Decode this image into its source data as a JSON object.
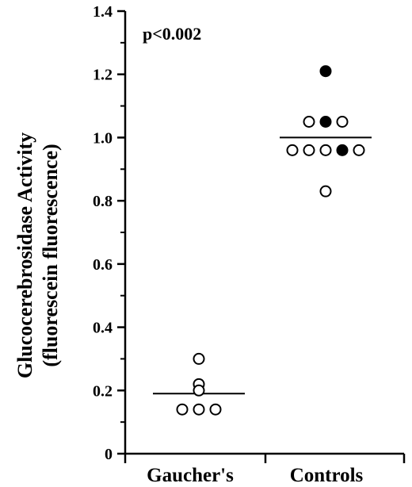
{
  "chart_data": {
    "type": "scatter",
    "categories": [
      "Gaucher's",
      "Controls"
    ],
    "ylabel_line1": "Glucocerebrosidase Activity",
    "ylabel_line2": "(fluorescein fluorescence)",
    "ylim": [
      0,
      1.4
    ],
    "yticks": [
      0,
      0.2,
      0.4,
      0.6,
      0.8,
      1.0,
      1.2,
      1.4
    ],
    "ytick_labels": [
      "0",
      "0.2",
      "0.4",
      "0.6",
      "0.8",
      "1.0",
      "1.2",
      "1.4"
    ],
    "annotation": "p<0.002",
    "grid": false,
    "groups": [
      {
        "category": "Gaucher's",
        "mean": 0.19,
        "points": [
          {
            "y": 0.3,
            "offset": 0,
            "filled": false
          },
          {
            "y": 0.22,
            "offset": 0,
            "filled": false
          },
          {
            "y": 0.2,
            "offset": 0,
            "filled": false
          },
          {
            "y": 0.14,
            "offset": -1,
            "filled": false
          },
          {
            "y": 0.14,
            "offset": 0,
            "filled": false
          },
          {
            "y": 0.14,
            "offset": 1,
            "filled": false
          }
        ]
      },
      {
        "category": "Controls",
        "mean": 1.0,
        "points": [
          {
            "y": 1.21,
            "offset": 0,
            "filled": true
          },
          {
            "y": 1.05,
            "offset": -1,
            "filled": false
          },
          {
            "y": 1.05,
            "offset": 0,
            "filled": true
          },
          {
            "y": 1.05,
            "offset": 1,
            "filled": false
          },
          {
            "y": 0.96,
            "offset": -2,
            "filled": false
          },
          {
            "y": 0.96,
            "offset": -1,
            "filled": false
          },
          {
            "y": 0.96,
            "offset": 0,
            "filled": false
          },
          {
            "y": 0.96,
            "offset": 1,
            "filled": true
          },
          {
            "y": 0.96,
            "offset": 2,
            "filled": false
          },
          {
            "y": 0.83,
            "offset": 0,
            "filled": false
          }
        ]
      }
    ]
  }
}
